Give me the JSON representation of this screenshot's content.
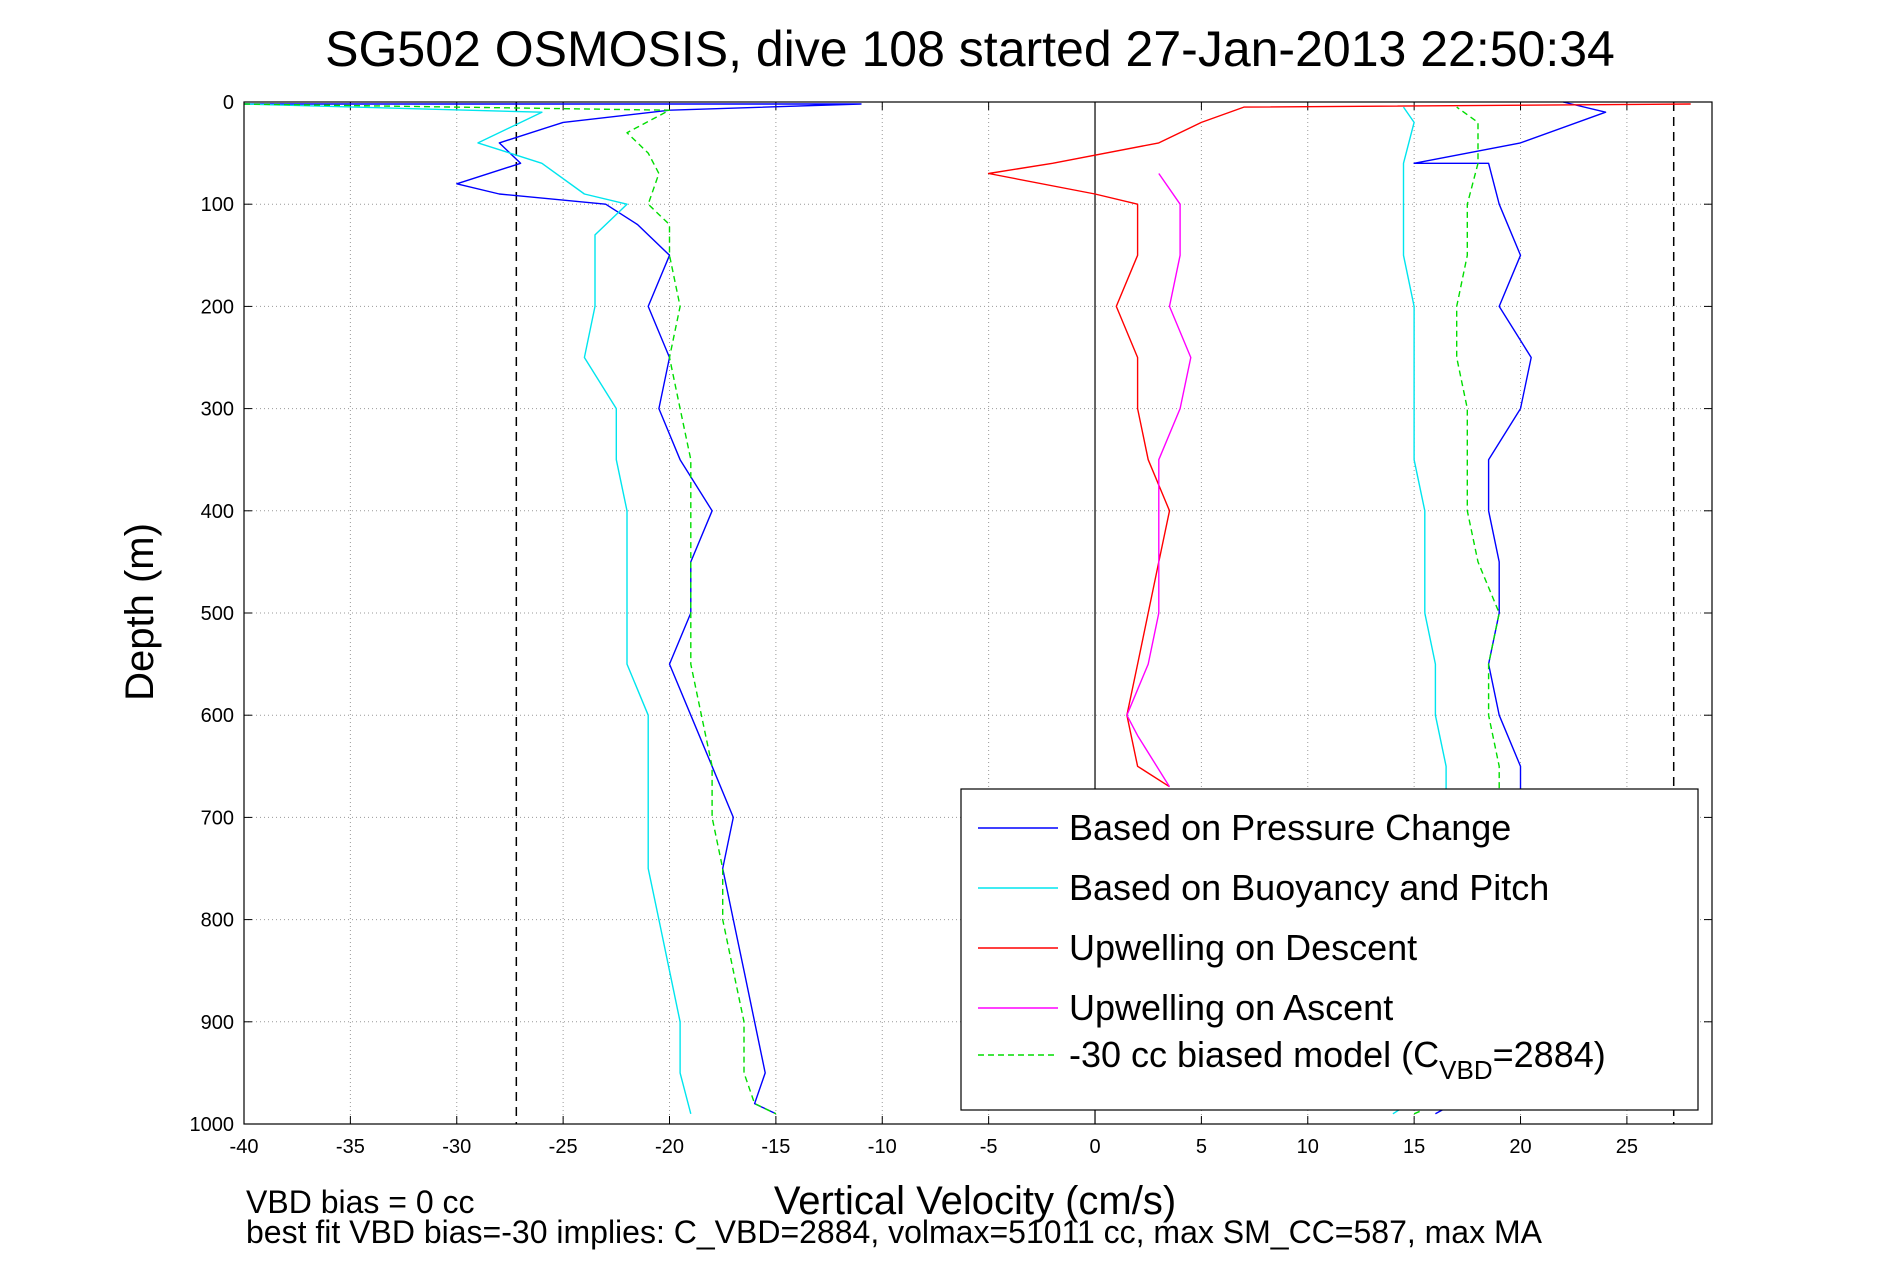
{
  "chart_data": {
    "type": "line",
    "title": "SG502 OSMOSIS, dive 108 started 27-Jan-2013 22:50:34",
    "xlabel": "Vertical Velocity (cm/s)",
    "ylabel": "Depth (m)",
    "xlim": [
      -40,
      29
    ],
    "ylim": [
      1000,
      0
    ],
    "y_reversed": true,
    "grid": true,
    "x_ticks": [
      -40,
      -35,
      -30,
      -25,
      -20,
      -15,
      -10,
      -5,
      0,
      5,
      10,
      15,
      20,
      25
    ],
    "y_ticks": [
      0,
      100,
      200,
      300,
      400,
      500,
      600,
      700,
      800,
      900,
      1000
    ],
    "reference_lines": [
      {
        "x": -27.2,
        "style": "dashed",
        "color": "#000000"
      },
      {
        "x": 27.2,
        "style": "dashed",
        "color": "#000000"
      },
      {
        "x": 0,
        "style": "solid",
        "color": "#000000"
      }
    ],
    "legend_position": "lower-right",
    "series": [
      {
        "name": "Based on Pressure Change",
        "color": "#0000ff",
        "style": "solid",
        "segments": [
          {
            "phase": "descent",
            "points": [
              [
                -40,
                2
              ],
              [
                -11,
                2
              ],
              [
                -20,
                8
              ],
              [
                -25,
                20
              ],
              [
                -28,
                40
              ],
              [
                -27,
                60
              ],
              [
                -30,
                80
              ],
              [
                -28,
                90
              ],
              [
                -23,
                100
              ],
              [
                -21.5,
                120
              ],
              [
                -20,
                150
              ],
              [
                -21,
                200
              ],
              [
                -20,
                250
              ],
              [
                -20.5,
                300
              ],
              [
                -19.5,
                350
              ],
              [
                -18,
                400
              ],
              [
                -19,
                450
              ],
              [
                -19,
                500
              ],
              [
                -20,
                550
              ],
              [
                -19,
                600
              ],
              [
                -18,
                650
              ],
              [
                -17,
                700
              ],
              [
                -17.5,
                750
              ],
              [
                -17,
                800
              ],
              [
                -16.5,
                850
              ],
              [
                -16,
                900
              ],
              [
                -15.5,
                950
              ],
              [
                -16,
                980
              ],
              [
                -15,
                990
              ]
            ]
          },
          {
            "phase": "ascent",
            "points": [
              [
                16,
                990
              ],
              [
                19.5,
                950
              ],
              [
                19,
                900
              ],
              [
                19.5,
                850
              ],
              [
                19,
                800
              ],
              [
                19.5,
                750
              ],
              [
                20,
                700
              ],
              [
                20,
                650
              ],
              [
                19,
                600
              ],
              [
                18.5,
                550
              ],
              [
                19,
                500
              ],
              [
                19,
                450
              ],
              [
                18.5,
                400
              ],
              [
                18.5,
                350
              ],
              [
                20,
                300
              ],
              [
                20.5,
                250
              ],
              [
                19,
                200
              ],
              [
                20,
                150
              ],
              [
                19,
                100
              ],
              [
                18.5,
                60
              ],
              [
                15,
                60
              ],
              [
                20,
                40
              ],
              [
                24,
                10
              ],
              [
                22,
                0
              ]
            ]
          }
        ]
      },
      {
        "name": "Based on Buoyancy and Pitch",
        "color": "#00e5ee",
        "style": "solid",
        "segments": [
          {
            "phase": "descent",
            "points": [
              [
                -40,
                2
              ],
              [
                -26,
                10
              ],
              [
                -29,
                40
              ],
              [
                -26,
                60
              ],
              [
                -24,
                90
              ],
              [
                -22,
                100
              ],
              [
                -23.5,
                130
              ],
              [
                -23.5,
                200
              ],
              [
                -24,
                250
              ],
              [
                -22.5,
                300
              ],
              [
                -22.5,
                350
              ],
              [
                -22,
                400
              ],
              [
                -22,
                450
              ],
              [
                -22,
                500
              ],
              [
                -22,
                550
              ],
              [
                -21,
                600
              ],
              [
                -21,
                650
              ],
              [
                -21,
                700
              ],
              [
                -21,
                750
              ],
              [
                -20.5,
                800
              ],
              [
                -20,
                850
              ],
              [
                -19.5,
                900
              ],
              [
                -19.5,
                950
              ],
              [
                -19,
                990
              ]
            ]
          },
          {
            "phase": "ascent",
            "points": [
              [
                14,
                990
              ],
              [
                17,
                950
              ],
              [
                16.5,
                900
              ],
              [
                16.5,
                850
              ],
              [
                16.5,
                800
              ],
              [
                16.5,
                750
              ],
              [
                16.5,
                700
              ],
              [
                16.5,
                650
              ],
              [
                16,
                600
              ],
              [
                16,
                550
              ],
              [
                15.5,
                500
              ],
              [
                15.5,
                450
              ],
              [
                15.5,
                400
              ],
              [
                15,
                350
              ],
              [
                15,
                300
              ],
              [
                15,
                250
              ],
              [
                15,
                200
              ],
              [
                14.5,
                150
              ],
              [
                14.5,
                100
              ],
              [
                14.5,
                60
              ],
              [
                15,
                20
              ],
              [
                14.5,
                5
              ]
            ]
          }
        ]
      },
      {
        "name": "Upwelling on Descent",
        "color": "#ff0000",
        "style": "solid",
        "segments": [
          {
            "phase": "descent",
            "points": [
              [
                28,
                2
              ],
              [
                7,
                5
              ],
              [
                5,
                20
              ],
              [
                3,
                40
              ],
              [
                -2,
                60
              ],
              [
                -5,
                70
              ],
              [
                0,
                90
              ],
              [
                2,
                100
              ],
              [
                2,
                150
              ],
              [
                1,
                200
              ],
              [
                2,
                250
              ],
              [
                2,
                300
              ],
              [
                2.5,
                350
              ],
              [
                3.5,
                400
              ],
              [
                3,
                450
              ],
              [
                2.5,
                500
              ],
              [
                2,
                550
              ],
              [
                1.5,
                600
              ],
              [
                2,
                650
              ],
              [
                3.5,
                670
              ]
            ]
          }
        ]
      },
      {
        "name": "Upwelling on Ascent",
        "color": "#ff00ff",
        "style": "solid",
        "segments": [
          {
            "phase": "ascent",
            "points": [
              [
                3.5,
                670
              ],
              [
                2,
                620
              ],
              [
                1.5,
                600
              ],
              [
                2.5,
                550
              ],
              [
                3,
                500
              ],
              [
                3,
                450
              ],
              [
                3,
                400
              ],
              [
                3,
                350
              ],
              [
                4,
                300
              ],
              [
                4.5,
                250
              ],
              [
                3.5,
                200
              ],
              [
                4,
                150
              ],
              [
                4,
                100
              ],
              [
                3,
                70
              ]
            ]
          }
        ]
      },
      {
        "name": "-30 cc biased model (C_VBD=2884)",
        "legend_label": "-30 cc biased model (C",
        "legend_subscript": "VBD",
        "legend_suffix": "=2884)",
        "color": "#00dd00",
        "style": "dashed",
        "segments": [
          {
            "phase": "descent",
            "points": [
              [
                -40,
                2
              ],
              [
                -20,
                8
              ],
              [
                -22,
                30
              ],
              [
                -21,
                50
              ],
              [
                -20.5,
                70
              ],
              [
                -21,
                100
              ],
              [
                -20,
                120
              ],
              [
                -20,
                150
              ],
              [
                -19.5,
                200
              ],
              [
                -20,
                250
              ],
              [
                -19.5,
                300
              ],
              [
                -19,
                350
              ],
              [
                -19,
                400
              ],
              [
                -19,
                450
              ],
              [
                -19,
                500
              ],
              [
                -19,
                550
              ],
              [
                -18.5,
                600
              ],
              [
                -18,
                650
              ],
              [
                -18,
                700
              ],
              [
                -17.5,
                750
              ],
              [
                -17.5,
                800
              ],
              [
                -17,
                850
              ],
              [
                -16.5,
                900
              ],
              [
                -16.5,
                950
              ],
              [
                -16,
                980
              ],
              [
                -15,
                990
              ]
            ]
          },
          {
            "phase": "ascent",
            "points": [
              [
                15,
                990
              ],
              [
                19.5,
                950
              ],
              [
                19.5,
                900
              ],
              [
                19,
                850
              ],
              [
                19,
                800
              ],
              [
                19,
                750
              ],
              [
                19,
                700
              ],
              [
                19,
                650
              ],
              [
                18.5,
                600
              ],
              [
                18.5,
                550
              ],
              [
                19,
                500
              ],
              [
                18,
                450
              ],
              [
                17.5,
                400
              ],
              [
                17.5,
                350
              ],
              [
                17.5,
                300
              ],
              [
                17,
                250
              ],
              [
                17,
                200
              ],
              [
                17.5,
                150
              ],
              [
                17.5,
                100
              ],
              [
                18,
                60
              ],
              [
                18,
                20
              ],
              [
                17,
                5
              ]
            ]
          }
        ]
      }
    ],
    "annotations": [
      "VBD bias = 0 cc",
      "best fit VBD bias=-30 implies: C_VBD=2884, volmax=51011 cc, max SM_CC=587, max MA"
    ]
  }
}
